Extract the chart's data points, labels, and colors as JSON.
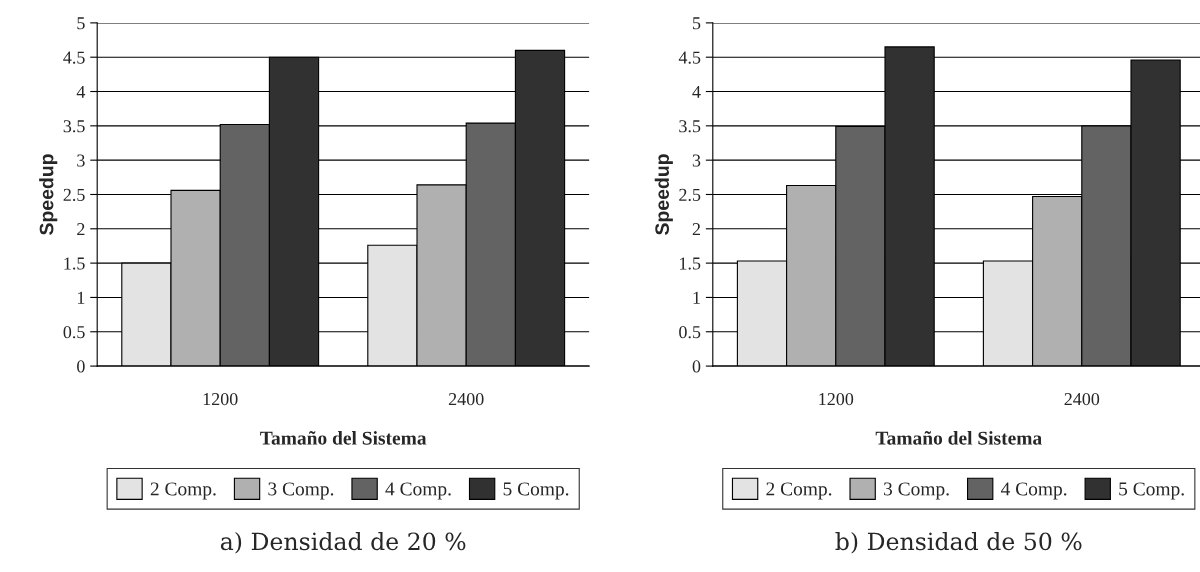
{
  "chart_data": [
    {
      "type": "bar",
      "categories": [
        "1200",
        "2400"
      ],
      "xlabel": "Tamaño del Sistema",
      "ylabel": "Speedup",
      "series": [
        {
          "name": "2 Comp.",
          "color": "#e3e3e3",
          "values": [
            1.5,
            1.76
          ]
        },
        {
          "name": "3 Comp.",
          "color": "#b0b0b0",
          "values": [
            2.56,
            2.64
          ]
        },
        {
          "name": "4 Comp.",
          "color": "#636363",
          "values": [
            3.52,
            3.54
          ]
        },
        {
          "name": "5 Comp.",
          "color": "#313131",
          "values": [
            4.5,
            4.6
          ]
        }
      ],
      "ylim": [
        0,
        5
      ],
      "yticks": [
        0,
        0.5,
        1,
        1.5,
        2,
        2.5,
        3,
        3.5,
        4,
        4.5,
        5
      ],
      "grid": "y",
      "legend": "bottom",
      "annotations": [
        "a) Densidad de 20 %"
      ]
    },
    {
      "type": "bar",
      "categories": [
        "1200",
        "2400"
      ],
      "xlabel": "Tamaño del Sistema",
      "ylabel": "Speedup",
      "series": [
        {
          "name": "2 Comp.",
          "color": "#e3e3e3",
          "values": [
            1.53,
            1.53
          ]
        },
        {
          "name": "3 Comp.",
          "color": "#b0b0b0",
          "values": [
            2.63,
            2.47
          ]
        },
        {
          "name": "4 Comp.",
          "color": "#636363",
          "values": [
            3.49,
            3.5
          ]
        },
        {
          "name": "5 Comp.",
          "color": "#313131",
          "values": [
            4.65,
            4.46
          ]
        }
      ],
      "ylim": [
        0,
        5
      ],
      "yticks": [
        0,
        0.5,
        1,
        1.5,
        2,
        2.5,
        3,
        3.5,
        4,
        4.5,
        5
      ],
      "grid": "y",
      "legend": "bottom",
      "annotations": [
        "b) Densidad de 50 %"
      ]
    }
  ]
}
